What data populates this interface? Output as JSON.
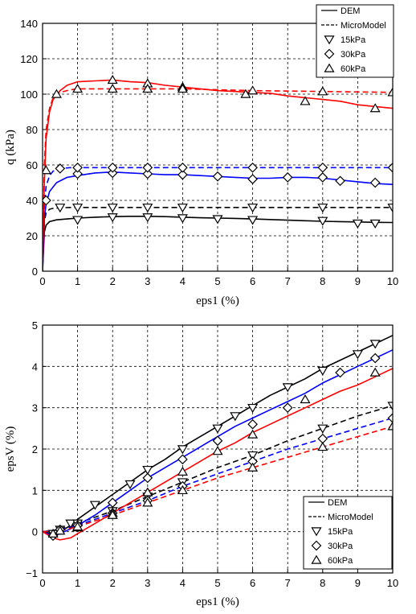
{
  "chart_data": [
    {
      "type": "line",
      "xlabel": "eps1 (%)",
      "ylabel": "q (kPa)",
      "xlim": [
        0,
        10
      ],
      "ylim": [
        0,
        140
      ],
      "xticks": [
        "0",
        "1",
        "2",
        "3",
        "4",
        "5",
        "6",
        "7",
        "8",
        "9",
        "10"
      ],
      "yticks": [
        "0",
        "20",
        "40",
        "60",
        "80",
        "100",
        "120",
        "140"
      ],
      "grid": true,
      "legend_position": "top-right",
      "legend": [
        {
          "label": "DEM",
          "style": "solid"
        },
        {
          "label": "MicroModel",
          "style": "dashed"
        },
        {
          "label": "15kPa",
          "marker": "triangle-down"
        },
        {
          "label": "30kPa",
          "marker": "diamond"
        },
        {
          "label": "60kPa",
          "marker": "triangle-up"
        }
      ],
      "series": [
        {
          "color": "#000000",
          "style": "solid",
          "marker": "triangle-down",
          "x": [
            0,
            0.05,
            0.1,
            0.2,
            0.4,
            0.7,
            1,
            1.5,
            2,
            2.5,
            3,
            3.5,
            4,
            4.5,
            5,
            5.5,
            6,
            6.5,
            7,
            7.5,
            8,
            8.5,
            9,
            9.5,
            10
          ],
          "y": [
            0,
            22,
            26,
            28,
            29,
            29.5,
            30,
            30.5,
            30.8,
            31,
            31,
            30.8,
            30.5,
            30.2,
            30,
            29.8,
            29.5,
            29.2,
            28.8,
            28.5,
            28.2,
            28,
            27.8,
            27.6,
            27.5
          ],
          "marker_x": [
            1,
            2,
            3,
            4,
            5,
            6,
            8,
            9,
            9.5
          ],
          "marker_y": [
            29,
            30.5,
            30.5,
            30,
            29.5,
            29,
            28.5,
            27,
            27
          ]
        },
        {
          "color": "#000000",
          "style": "dashed",
          "marker": "triangle-down",
          "x": [
            0,
            0.05,
            0.1,
            0.2,
            0.3,
            0.5,
            0.8,
            1,
            2,
            4,
            6,
            8,
            10
          ],
          "y": [
            0,
            28,
            33,
            35,
            35.5,
            35.8,
            36,
            36,
            36,
            36,
            36,
            36,
            36
          ],
          "marker_x": [
            0.5,
            1,
            2,
            3,
            4,
            6,
            8,
            10
          ],
          "marker_y": [
            36,
            36,
            36,
            36,
            36,
            36,
            36,
            36
          ]
        },
        {
          "color": "#0000ff",
          "style": "solid",
          "marker": "diamond",
          "x": [
            0,
            0.05,
            0.1,
            0.2,
            0.4,
            0.7,
            1,
            1.5,
            2,
            2.5,
            3,
            3.5,
            4,
            4.5,
            5,
            5.5,
            6,
            6.5,
            7,
            7.5,
            8,
            8.5,
            9,
            9.5,
            10
          ],
          "y": [
            0,
            30,
            38,
            45,
            50,
            53,
            54,
            55.5,
            56,
            55.5,
            55,
            54.5,
            54.5,
            54,
            53.5,
            53,
            52.5,
            52.5,
            53,
            53,
            52.5,
            51.5,
            50.5,
            49.5,
            49
          ],
          "marker_x": [
            1,
            2,
            3,
            4,
            5,
            6,
            7,
            8,
            8.5,
            9.5
          ],
          "marker_y": [
            55,
            55.5,
            55,
            54.5,
            53.5,
            52,
            53,
            53,
            51,
            50
          ]
        },
        {
          "color": "#0000ff",
          "style": "dashed",
          "marker": "diamond",
          "x": [
            0,
            0.05,
            0.1,
            0.2,
            0.3,
            0.5,
            0.8,
            1,
            2,
            4,
            6,
            8,
            10
          ],
          "y": [
            0,
            38,
            48,
            54,
            56.5,
            58,
            58.5,
            58.5,
            58.5,
            58.5,
            58.5,
            58.5,
            58.5
          ],
          "marker_x": [
            0.1,
            0.5,
            1,
            2,
            3,
            4,
            6,
            8,
            10
          ],
          "marker_y": [
            40,
            58,
            58.5,
            58.5,
            58.5,
            58.5,
            58.5,
            58.5,
            58.5
          ]
        },
        {
          "color": "#ff0000",
          "style": "solid",
          "marker": "triangle-up",
          "x": [
            0,
            0.05,
            0.1,
            0.2,
            0.3,
            0.5,
            0.7,
            1,
            1.5,
            2,
            2.5,
            3,
            3.5,
            4,
            4.5,
            5,
            5.5,
            6,
            6.5,
            7,
            7.5,
            8,
            8.5,
            9,
            9.5,
            10
          ],
          "y": [
            0,
            50,
            75,
            90,
            97,
            102,
            105,
            107,
            107.5,
            108,
            107,
            106.5,
            105,
            104,
            103,
            102,
            101.5,
            101,
            100.5,
            99,
            98,
            97,
            96,
            94,
            93,
            92
          ],
          "marker_x": [
            2,
            3,
            4,
            5.8,
            7.5,
            9.5
          ],
          "marker_y": [
            108,
            106,
            104,
            100,
            96,
            92
          ]
        },
        {
          "color": "#ff0000",
          "style": "dashed",
          "marker": "triangle-up",
          "x": [
            0,
            0.05,
            0.1,
            0.2,
            0.3,
            0.5,
            0.8,
            1,
            2,
            4,
            6,
            8,
            10
          ],
          "y": [
            0,
            60,
            80,
            92,
            98,
            101,
            102.5,
            103,
            103,
            103,
            102,
            101.5,
            101
          ],
          "marker_x": [
            0.1,
            0.4,
            1,
            2,
            3,
            4,
            6,
            8,
            10
          ],
          "marker_y": [
            57,
            100,
            103,
            103,
            103,
            103,
            102,
            101.5,
            101
          ]
        }
      ]
    },
    {
      "type": "line",
      "xlabel": "eps1 (%)",
      "ylabel": "epsV (%)",
      "xlim": [
        0,
        10
      ],
      "ylim": [
        -1,
        5
      ],
      "xticks": [
        "0",
        "1",
        "2",
        "3",
        "4",
        "5",
        "6",
        "7",
        "8",
        "9",
        "10"
      ],
      "yticks": [
        "−1",
        "0",
        "1",
        "2",
        "3",
        "4",
        "5"
      ],
      "grid": true,
      "legend_position": "bottom-right",
      "legend": [
        {
          "label": "DEM",
          "style": "solid"
        },
        {
          "label": "MicroModel",
          "style": "dashed"
        },
        {
          "label": "15kPa",
          "marker": "triangle-down"
        },
        {
          "label": "30kPa",
          "marker": "diamond"
        },
        {
          "label": "60kPa",
          "marker": "triangle-up"
        }
      ],
      "series": [
        {
          "color": "#000000",
          "style": "solid",
          "marker": "triangle-down",
          "x": [
            0,
            0.3,
            0.5,
            0.8,
            1,
            1.5,
            2,
            2.5,
            3,
            3.5,
            4,
            4.5,
            5,
            5.5,
            6,
            6.5,
            7,
            7.5,
            8,
            8.5,
            9,
            9.5,
            10
          ],
          "y": [
            0,
            -0.05,
            0,
            0.15,
            0.3,
            0.6,
            0.9,
            1.2,
            1.5,
            1.75,
            2.05,
            2.3,
            2.55,
            2.8,
            3.05,
            3.3,
            3.5,
            3.7,
            3.95,
            4.15,
            4.35,
            4.55,
            4.75
          ],
          "marker_x": [
            0.3,
            0.8,
            1.5,
            2.5,
            3,
            4,
            5,
            5.5,
            6,
            7,
            8,
            9,
            9.5
          ],
          "marker_y": [
            -0.05,
            0.2,
            0.65,
            1.15,
            1.5,
            2,
            2.5,
            2.8,
            3,
            3.5,
            3.9,
            4.3,
            4.55
          ]
        },
        {
          "color": "#000000",
          "style": "dashed",
          "marker": "triangle-down",
          "x": [
            0,
            0.5,
            1,
            2,
            3,
            4,
            5,
            6,
            7,
            8,
            9,
            10
          ],
          "y": [
            0,
            0.05,
            0.2,
            0.5,
            0.85,
            1.2,
            1.55,
            1.85,
            2.2,
            2.5,
            2.8,
            3.05
          ],
          "marker_x": [
            0.5,
            1,
            2,
            3,
            4,
            6,
            8,
            10
          ],
          "marker_y": [
            0.05,
            0.2,
            0.5,
            0.85,
            1.2,
            1.85,
            2.5,
            3.05
          ]
        },
        {
          "color": "#0000ff",
          "style": "solid",
          "marker": "diamond",
          "x": [
            0,
            0.3,
            0.5,
            1,
            1.5,
            2,
            2.5,
            3,
            3.5,
            4,
            4.5,
            5,
            5.5,
            6,
            6.5,
            7,
            7.5,
            8,
            8.5,
            9,
            9.5,
            10
          ],
          "y": [
            0,
            -0.1,
            -0.05,
            0.15,
            0.4,
            0.7,
            1,
            1.3,
            1.55,
            1.8,
            2.05,
            2.3,
            2.55,
            2.75,
            2.95,
            3.15,
            3.35,
            3.6,
            3.8,
            4,
            4.2,
            4.4
          ],
          "marker_x": [
            0.3,
            1,
            2,
            3,
            4,
            5,
            6,
            7,
            8.5,
            9.5
          ],
          "marker_y": [
            -0.1,
            0.15,
            0.7,
            1.3,
            1.75,
            2.2,
            2.6,
            3,
            3.85,
            4.2
          ]
        },
        {
          "color": "#0000ff",
          "style": "dashed",
          "marker": "diamond",
          "x": [
            0,
            0.5,
            1,
            2,
            3,
            4,
            5,
            6,
            7,
            8,
            9,
            10
          ],
          "y": [
            0,
            0.05,
            0.15,
            0.45,
            0.75,
            1.1,
            1.4,
            1.7,
            2,
            2.25,
            2.5,
            2.75
          ],
          "marker_x": [
            0.5,
            1,
            2,
            3,
            4,
            6,
            8,
            10
          ],
          "marker_y": [
            0.05,
            0.15,
            0.45,
            0.75,
            1.1,
            1.7,
            2.25,
            2.75
          ]
        },
        {
          "color": "#ff0000",
          "style": "solid",
          "marker": "triangle-up",
          "x": [
            0,
            0.3,
            0.5,
            0.8,
            1,
            1.5,
            2,
            2.5,
            3,
            3.5,
            4,
            4.5,
            5,
            5.5,
            6,
            6.5,
            7,
            7.5,
            8,
            8.5,
            9,
            9.5,
            10
          ],
          "y": [
            0,
            -0.15,
            -0.2,
            -0.15,
            -0.05,
            0.2,
            0.45,
            0.7,
            0.95,
            1.2,
            1.45,
            1.7,
            1.95,
            2.15,
            2.4,
            2.6,
            2.8,
            3.0,
            3.2,
            3.4,
            3.55,
            3.75,
            3.95
          ],
          "marker_x": [
            0.3,
            1,
            2,
            3,
            4,
            5,
            6,
            7.5,
            9.5
          ],
          "marker_y": [
            -0.05,
            0.1,
            0.45,
            0.95,
            1.45,
            1.95,
            2.35,
            3.2,
            3.85
          ]
        },
        {
          "color": "#ff0000",
          "style": "dashed",
          "marker": "triangle-up",
          "x": [
            0,
            0.5,
            1,
            2,
            3,
            4,
            5,
            6,
            7,
            8,
            9,
            10
          ],
          "y": [
            0,
            0.02,
            0.12,
            0.4,
            0.7,
            1,
            1.3,
            1.55,
            1.8,
            2.05,
            2.3,
            2.55
          ],
          "marker_x": [
            0.5,
            1,
            2,
            3,
            4,
            6,
            8,
            10
          ],
          "marker_y": [
            0.02,
            0.12,
            0.4,
            0.7,
            1,
            1.55,
            2.05,
            2.55
          ]
        }
      ]
    }
  ]
}
